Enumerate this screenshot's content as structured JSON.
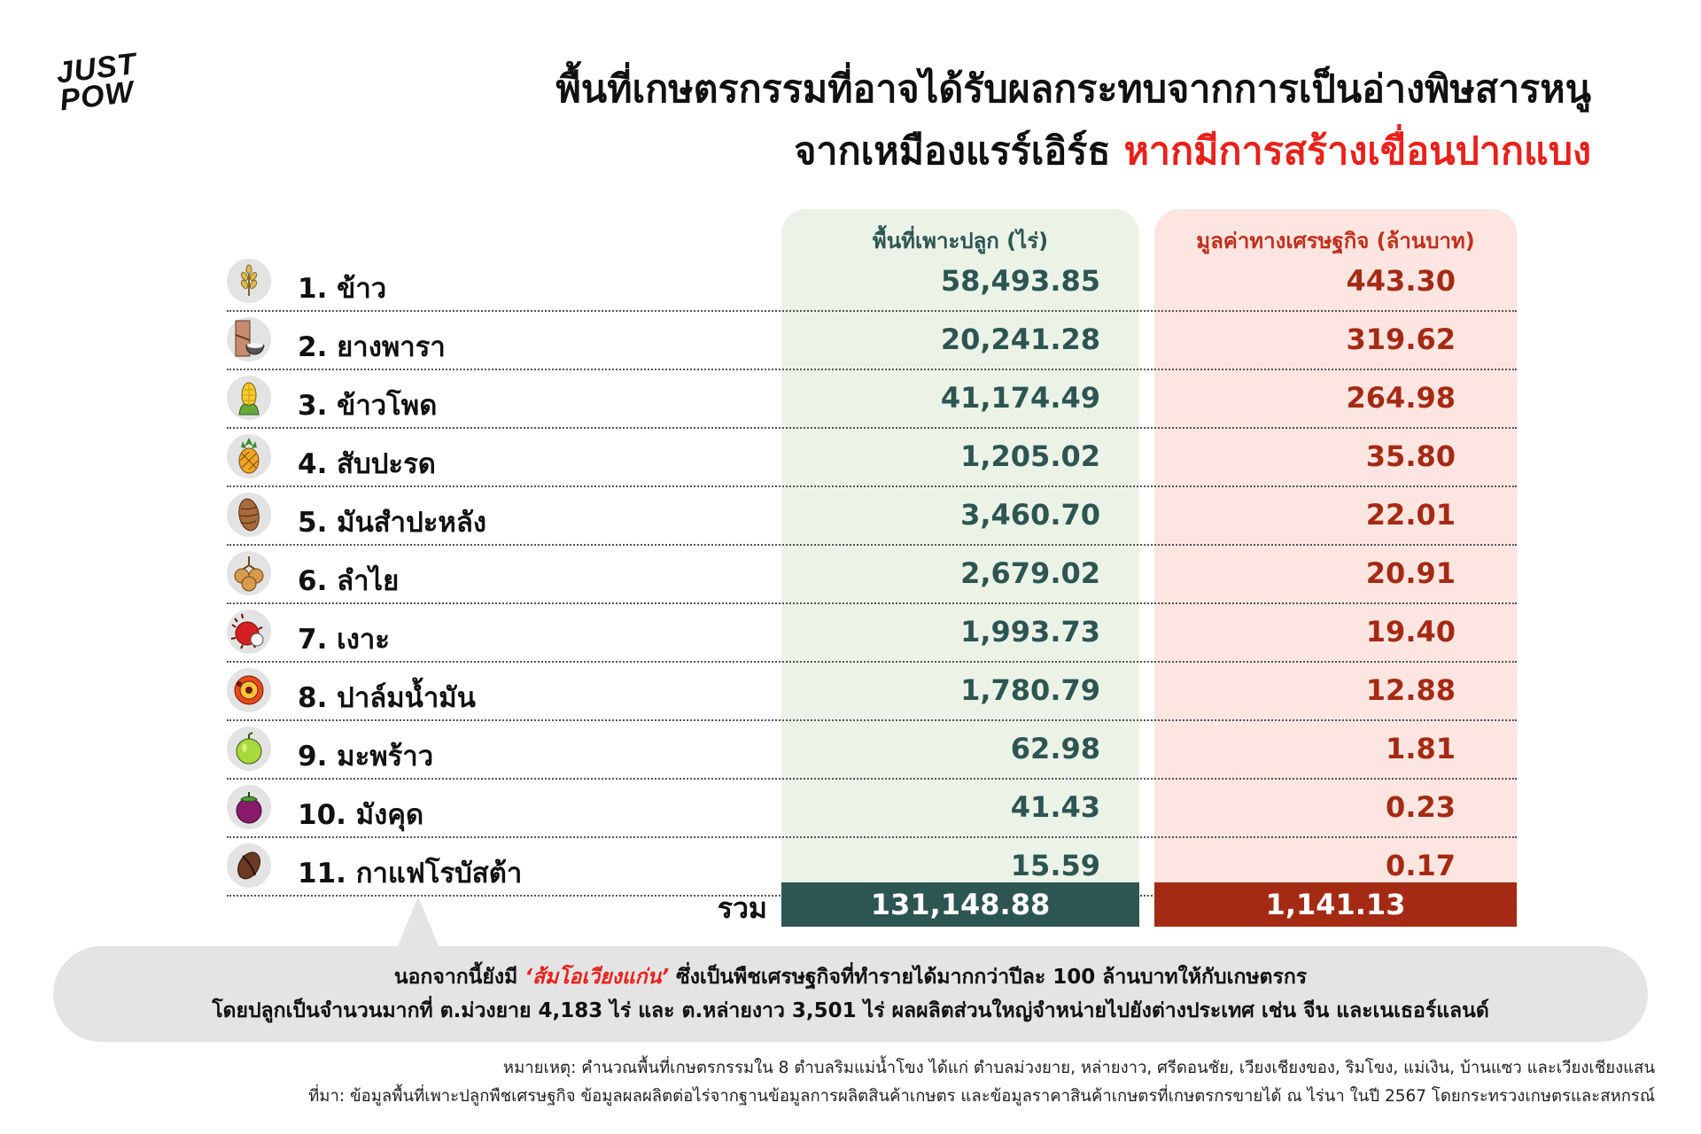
{
  "logo": {
    "line1": "JUST",
    "line2": "POW"
  },
  "title": {
    "line1": "พื้นที่เกษตรกรรมที่อาจได้รับผลกระทบจากการเป็นอ่างพิษสารหนู",
    "line2_black": "จากเหมืองแรร์เอิร์ธ",
    "line2_red": "หากมีการสร้างเขื่อนปากแบง"
  },
  "columns": {
    "area": "พื้นที่เพาะปลูก (ไร่)",
    "value": "มูลค่าทางเศรษฐกิจ (ล้านบาท)"
  },
  "chart_data": {
    "type": "table",
    "title": "พื้นที่เกษตรกรรมที่อาจได้รับผลกระทบจากการเป็นอ่างพิษสารหนู จากเหมืองแรร์เอิร์ธ หากมีการสร้างเขื่อนปากแบง",
    "rows": [
      {
        "label": "1. ข้าว",
        "icon": "rice-icon",
        "area": "58,493.85",
        "value": "443.30"
      },
      {
        "label": "2. ยางพารา",
        "icon": "rubber-tree-icon",
        "area": "20,241.28",
        "value": "319.62"
      },
      {
        "label": "3. ข้าวโพด",
        "icon": "corn-icon",
        "area": "41,174.49",
        "value": "264.98"
      },
      {
        "label": "4. สับปะรด",
        "icon": "pineapple-icon",
        "area": "1,205.02",
        "value": "35.80"
      },
      {
        "label": "5. มันสำปะหลัง",
        "icon": "cassava-icon",
        "area": "3,460.70",
        "value": "22.01"
      },
      {
        "label": "6. ลำไย",
        "icon": "longan-icon",
        "area": "2,679.02",
        "value": "20.91"
      },
      {
        "label": "7. เงาะ",
        "icon": "rambutan-icon",
        "area": "1,993.73",
        "value": "19.40"
      },
      {
        "label": "8. ปาล์มน้ำมัน",
        "icon": "oil-palm-icon",
        "area": "1,780.79",
        "value": "12.88"
      },
      {
        "label": "9. มะพร้าว",
        "icon": "coconut-icon",
        "area": "62.98",
        "value": "1.81"
      },
      {
        "label": "10. มังคุด",
        "icon": "mangosteen-icon",
        "area": "41.43",
        "value": "0.23"
      },
      {
        "label": "11. กาแฟโรบัสต้า",
        "icon": "coffee-bean-icon",
        "area": "15.59",
        "value": "0.17"
      }
    ],
    "total": {
      "label": "รวม",
      "area": "131,148.88",
      "value": "1,141.13"
    }
  },
  "callout": {
    "line1_pre": "นอกจากนี้ยังมี",
    "line1_red": "‘ส้มโอเวียงแก่น’",
    "line1_post": "ซึ่งเป็นพืชเศรษฐกิจที่ทำรายได้มากกว่าปีละ 100 ล้านบาทให้กับเกษตรกร",
    "line2": "โดยปลูกเป็นจำนวนมากที่ ต.ม่วงยาย 4,183 ไร่ และ ต.หล่ายงาว 3,501 ไร่ ผลผลิตส่วนใหญ่จำหน่ายไปยังต่างประเทศ เช่น จีน และเนเธอร์แลนด์"
  },
  "notes": {
    "remark": "หมายเหตุ: คำนวณพื้นที่เกษตรกรรมใน 8 ตำบลริมแม่น้ำโขง ได้แก่ ตำบลม่วงยาย, หล่ายงาว, ศรีดอนชัย, เวียงเชียงของ, ริมโขง, แม่เงิน, บ้านแซว และเวียงเชียงแสน",
    "source": "ที่มา: ข้อมูลพื้นที่เพาะปลูกพืชเศรษฐกิจ ข้อมูลผลผลิตต่อไร่จากฐานข้อมูลการผลิตสินค้าเกษตร และข้อมูลราคาสินค้าเกษตรที่เกษตรกรขายได้ ณ ไร่นา ในปี 2567 โดยกระทรวงเกษตรและสหกรณ์"
  },
  "colors": {
    "accent_red": "#e8211b",
    "area_dark": "#2d5552",
    "value_dark": "#a52a14",
    "area_panel": "#ebf3e7",
    "value_panel": "#fde5e1"
  }
}
